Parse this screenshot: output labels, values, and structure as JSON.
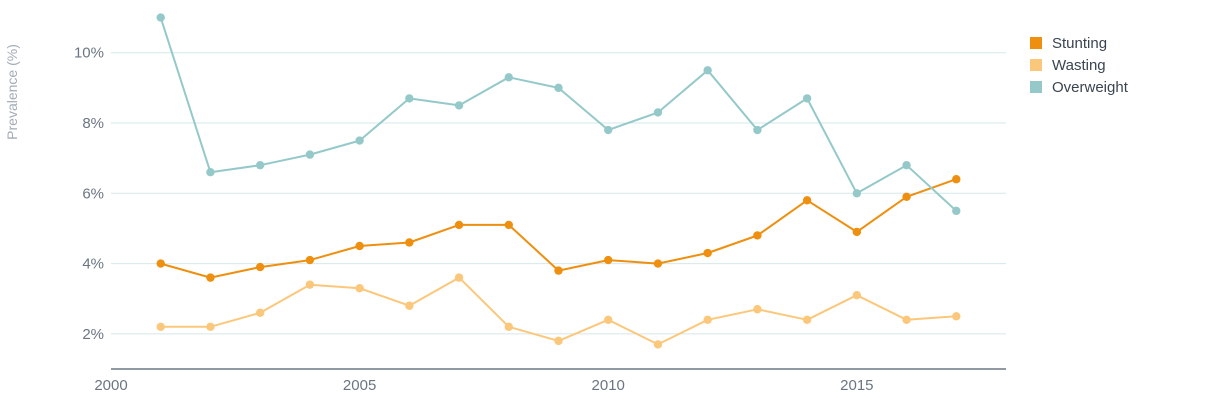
{
  "chart_data": {
    "type": "line",
    "ylabel": "Prevalence (%)",
    "xlim": [
      2000,
      2018
    ],
    "ylim": [
      1,
      11.5
    ],
    "x_ticks": [
      {
        "value": 2000,
        "label": "2000"
      },
      {
        "value": 2005,
        "label": "2005"
      },
      {
        "value": 2010,
        "label": "2010"
      },
      {
        "value": 2015,
        "label": "2015"
      }
    ],
    "y_ticks": [
      {
        "value": 2,
        "label": "2%"
      },
      {
        "value": 4,
        "label": "4%"
      },
      {
        "value": 6,
        "label": "6%"
      },
      {
        "value": 8,
        "label": "8%"
      },
      {
        "value": 10,
        "label": "10%"
      }
    ],
    "grid": true,
    "legend_position": "top-right",
    "x": [
      2001,
      2002,
      2003,
      2004,
      2005,
      2006,
      2007,
      2008,
      2009,
      2010,
      2011,
      2012,
      2013,
      2014,
      2015,
      2016,
      2017
    ],
    "series": [
      {
        "name": "Stunting",
        "color": "#ee8f0f",
        "values": [
          4.0,
          3.6,
          3.9,
          4.1,
          4.5,
          4.6,
          5.1,
          5.1,
          3.8,
          4.1,
          4.0,
          4.3,
          4.8,
          5.8,
          4.9,
          5.9,
          6.4
        ]
      },
      {
        "name": "Wasting",
        "color": "#fbc77a",
        "values": [
          2.2,
          2.2,
          2.6,
          3.4,
          3.3,
          2.8,
          3.6,
          2.2,
          1.8,
          2.4,
          1.7,
          2.4,
          2.7,
          2.4,
          3.1,
          2.4,
          2.5
        ]
      },
      {
        "name": "Overweight",
        "color": "#95c9c9",
        "values": [
          11.0,
          6.6,
          6.8,
          7.1,
          7.5,
          8.7,
          8.5,
          9.3,
          9.0,
          7.8,
          8.3,
          9.5,
          7.8,
          8.7,
          6.0,
          6.8,
          5.5
        ]
      }
    ],
    "colors": {
      "grid": "#d6e8e8",
      "axis": "#4f5e6c"
    }
  }
}
